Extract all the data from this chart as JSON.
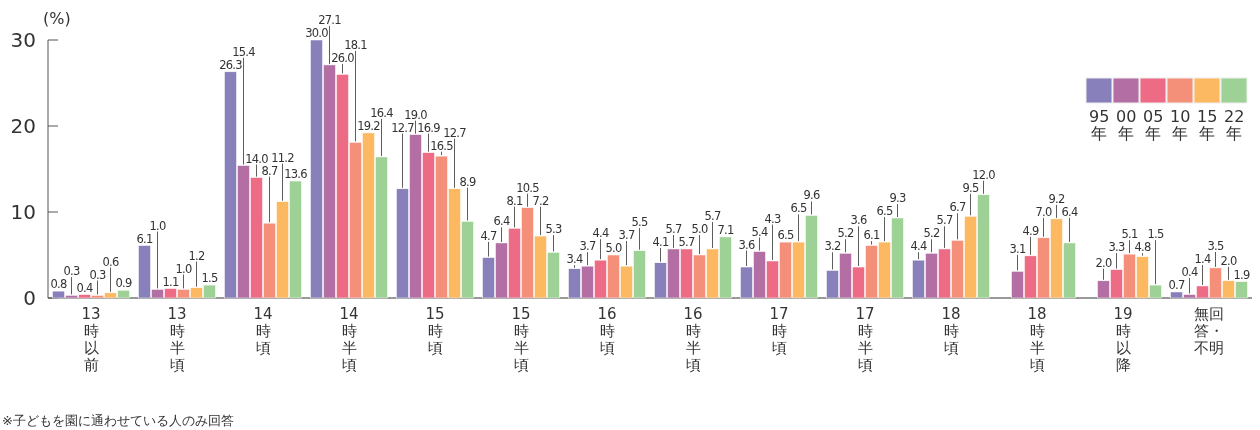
{
  "chart_data": {
    "type": "bar",
    "ylabel": "(%)",
    "annotations": [
      "※子どもを園に通わせている人のみ回答"
    ],
    "categories": [
      "13時以前",
      "13時半頃",
      "14時頃",
      "14時半頃",
      "15時頃",
      "15時半頃",
      "16時頃",
      "16時半頃",
      "17時頃",
      "17時半頃",
      "18時頃",
      "18時半頃",
      "19時以降",
      "無回答・不明"
    ],
    "series": [
      {
        "name": "95年",
        "color": "#8780bb",
        "values": [
          0.8,
          6.1,
          26.3,
          30.0,
          12.7,
          4.7,
          3.4,
          4.1,
          3.6,
          3.2,
          4.4,
          null,
          null,
          0.7
        ],
        "value_labels": [
          "0.8",
          "6.1",
          "26.3",
          "30.0",
          "12.7",
          "4.7",
          "3.4",
          "4.1",
          "3.6",
          "3.2",
          "4.4",
          null,
          null,
          "0.7"
        ]
      },
      {
        "name": "00年",
        "color": "#b36fa3",
        "values": [
          0.3,
          1.0,
          15.4,
          27.1,
          19.0,
          6.4,
          3.7,
          5.7,
          5.4,
          5.2,
          5.2,
          3.1,
          2.0,
          0.4
        ],
        "value_labels": [
          "0.3",
          "1.0",
          "15.4",
          "27.1",
          "19.0",
          "6.4",
          "3.7",
          "5.7",
          "5.4",
          "5.2",
          "5.2",
          "3.1",
          "2.0",
          "0.4"
        ]
      },
      {
        "name": "05年",
        "color": "#ee6b86",
        "values": [
          0.4,
          1.1,
          14.0,
          26.0,
          16.9,
          8.1,
          4.4,
          5.7,
          4.3,
          3.6,
          5.7,
          4.9,
          3.3,
          1.4
        ],
        "value_labels": [
          "0.4",
          "1.1",
          "14.0",
          "26.0",
          "16.9",
          "8.1",
          "4.4",
          "5.7",
          "4.3",
          "3.6",
          "5.7",
          "4.9",
          "3.3",
          "1.4"
        ]
      },
      {
        "name": "10年",
        "color": "#f48f7a",
        "values": [
          0.3,
          1.0,
          8.7,
          18.1,
          16.5,
          10.5,
          5.0,
          5.0,
          6.5,
          6.1,
          6.7,
          7.0,
          5.1,
          3.5
        ],
        "value_labels": [
          "0.3",
          "1.0",
          "8.7",
          "18.1",
          "16.5",
          "10.5",
          "5.0",
          "5.0",
          "6.5",
          "6.1",
          "6.7",
          "7.0",
          "5.1",
          "3.5"
        ]
      },
      {
        "name": "15年",
        "color": "#fdb862",
        "values": [
          0.6,
          1.2,
          11.2,
          19.2,
          12.7,
          7.2,
          3.7,
          5.7,
          6.5,
          6.5,
          9.5,
          9.2,
          4.8,
          2.0
        ],
        "value_labels": [
          "0.6",
          "1.2",
          "11.2",
          "19.2",
          "12.7",
          "7.2",
          "3.7",
          "5.7",
          "6.5",
          "6.5",
          "9.5",
          "9.2",
          "4.8",
          "2.0"
        ]
      },
      {
        "name": "22年",
        "color": "#9ed196",
        "values": [
          0.9,
          1.5,
          13.6,
          16.4,
          8.9,
          5.3,
          5.5,
          7.1,
          9.6,
          9.3,
          12.0,
          6.4,
          1.5,
          1.9
        ],
        "value_labels": [
          "0.9",
          "1.5",
          "13.6",
          "16.4",
          "8.9",
          "5.3",
          "5.5",
          "7.1",
          "9.6",
          "9.3",
          "12.0",
          "6.4",
          "1.5",
          "1.9"
        ]
      }
    ],
    "ylim": [
      0,
      30
    ],
    "yticks": [
      0,
      10,
      20,
      30
    ],
    "legend": "top right"
  }
}
